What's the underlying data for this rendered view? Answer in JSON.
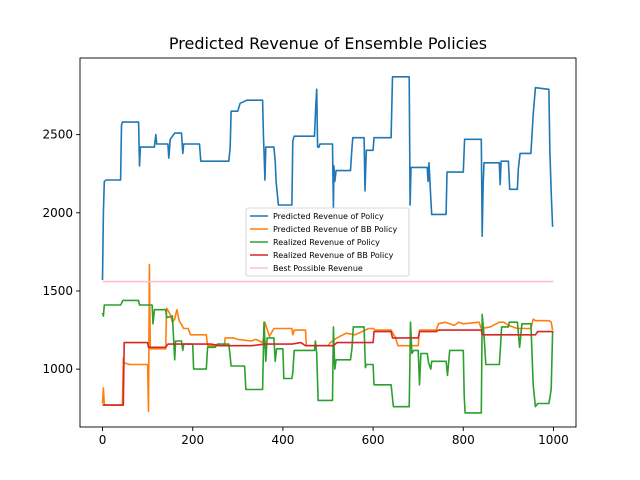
{
  "chart_data": {
    "type": "line",
    "title": "Predicted Revenue of Ensemble Policies",
    "xlabel": "",
    "ylabel": "",
    "xlim": [
      -50,
      1050
    ],
    "ylim": [
      630,
      2990
    ],
    "xticks": [
      0,
      200,
      400,
      600,
      800,
      1000
    ],
    "yticks": [
      1000,
      1500,
      2000,
      2500
    ],
    "grid": false,
    "legend_position": "center",
    "series": [
      {
        "name": "Predicted Revenue of Policy",
        "color": "#1f77b4",
        "points": [
          [
            0,
            1570
          ],
          [
            2,
            2000
          ],
          [
            4,
            2200
          ],
          [
            8,
            2210
          ],
          [
            40,
            2210
          ],
          [
            42,
            2560
          ],
          [
            44,
            2580
          ],
          [
            80,
            2580
          ],
          [
            82,
            2300
          ],
          [
            84,
            2420
          ],
          [
            115,
            2420
          ],
          [
            118,
            2500
          ],
          [
            120,
            2440
          ],
          [
            145,
            2440
          ],
          [
            147,
            2350
          ],
          [
            150,
            2470
          ],
          [
            160,
            2510
          ],
          [
            175,
            2510
          ],
          [
            178,
            2380
          ],
          [
            180,
            2440
          ],
          [
            200,
            2440
          ],
          [
            215,
            2440
          ],
          [
            218,
            2330
          ],
          [
            240,
            2330
          ],
          [
            280,
            2330
          ],
          [
            283,
            2420
          ],
          [
            285,
            2650
          ],
          [
            300,
            2650
          ],
          [
            305,
            2700
          ],
          [
            320,
            2720
          ],
          [
            355,
            2720
          ],
          [
            357,
            2480
          ],
          [
            358,
            2400
          ],
          [
            360,
            2210
          ],
          [
            362,
            2420
          ],
          [
            380,
            2420
          ],
          [
            383,
            2330
          ],
          [
            385,
            2200
          ],
          [
            390,
            2050
          ],
          [
            420,
            2050
          ],
          [
            422,
            2460
          ],
          [
            425,
            2490
          ],
          [
            470,
            2490
          ],
          [
            473,
            2690
          ],
          [
            475,
            2790
          ],
          [
            477,
            2420
          ],
          [
            480,
            2420
          ],
          [
            482,
            2440
          ],
          [
            510,
            2440
          ],
          [
            512,
            2030
          ],
          [
            513,
            2300
          ],
          [
            515,
            2200
          ],
          [
            518,
            2270
          ],
          [
            550,
            2270
          ],
          [
            553,
            2410
          ],
          [
            555,
            2480
          ],
          [
            580,
            2480
          ],
          [
            582,
            2140
          ],
          [
            585,
            2400
          ],
          [
            600,
            2400
          ],
          [
            602,
            2480
          ],
          [
            640,
            2480
          ],
          [
            643,
            2870
          ],
          [
            680,
            2870
          ],
          [
            682,
            2050
          ],
          [
            684,
            2290
          ],
          [
            720,
            2290
          ],
          [
            722,
            2200
          ],
          [
            724,
            2320
          ],
          [
            728,
            2090
          ],
          [
            730,
            1990
          ],
          [
            762,
            1990
          ],
          [
            764,
            2260
          ],
          [
            800,
            2260
          ],
          [
            803,
            2470
          ],
          [
            840,
            2470
          ],
          [
            842,
            1850
          ],
          [
            844,
            2170
          ],
          [
            846,
            2320
          ],
          [
            880,
            2320
          ],
          [
            882,
            2180
          ],
          [
            884,
            2330
          ],
          [
            900,
            2330
          ],
          [
            903,
            2150
          ],
          [
            920,
            2150
          ],
          [
            922,
            2280
          ],
          [
            926,
            2380
          ],
          [
            930,
            2380
          ],
          [
            950,
            2380
          ],
          [
            955,
            2630
          ],
          [
            960,
            2800
          ],
          [
            990,
            2790
          ],
          [
            992,
            2410
          ],
          [
            995,
            2130
          ],
          [
            998,
            1910
          ]
        ]
      },
      {
        "name": "Predicted Revenue of BB Policy",
        "color": "#ff7f0e",
        "points": [
          [
            0,
            780
          ],
          [
            2,
            880
          ],
          [
            4,
            770
          ],
          [
            44,
            770
          ],
          [
            46,
            1070
          ],
          [
            48,
            1040
          ],
          [
            60,
            1030
          ],
          [
            100,
            1030
          ],
          [
            102,
            730
          ],
          [
            104,
            1670
          ],
          [
            106,
            1130
          ],
          [
            140,
            1130
          ],
          [
            142,
            1390
          ],
          [
            150,
            1350
          ],
          [
            155,
            1300
          ],
          [
            160,
            1320
          ],
          [
            165,
            1380
          ],
          [
            170,
            1310
          ],
          [
            180,
            1260
          ],
          [
            190,
            1260
          ],
          [
            195,
            1220
          ],
          [
            230,
            1220
          ],
          [
            233,
            1150
          ],
          [
            250,
            1150
          ],
          [
            270,
            1150
          ],
          [
            272,
            1200
          ],
          [
            290,
            1200
          ],
          [
            300,
            1190
          ],
          [
            330,
            1180
          ],
          [
            340,
            1190
          ],
          [
            355,
            1170
          ],
          [
            358,
            1220
          ],
          [
            360,
            1300
          ],
          [
            370,
            1210
          ],
          [
            380,
            1260
          ],
          [
            420,
            1260
          ],
          [
            422,
            1220
          ],
          [
            425,
            1250
          ],
          [
            450,
            1250
          ],
          [
            452,
            1150
          ],
          [
            500,
            1150
          ],
          [
            505,
            1170
          ],
          [
            520,
            1200
          ],
          [
            540,
            1230
          ],
          [
            560,
            1220
          ],
          [
            590,
            1260
          ],
          [
            600,
            1260
          ],
          [
            605,
            1250
          ],
          [
            640,
            1250
          ],
          [
            650,
            1200
          ],
          [
            655,
            1150
          ],
          [
            700,
            1150
          ],
          [
            703,
            1250
          ],
          [
            740,
            1250
          ],
          [
            745,
            1290
          ],
          [
            760,
            1300
          ],
          [
            780,
            1280
          ],
          [
            790,
            1300
          ],
          [
            800,
            1290
          ],
          [
            835,
            1300
          ],
          [
            840,
            1260
          ],
          [
            860,
            1270
          ],
          [
            880,
            1300
          ],
          [
            890,
            1300
          ],
          [
            900,
            1280
          ],
          [
            920,
            1260
          ],
          [
            950,
            1260
          ],
          [
            955,
            1320
          ],
          [
            960,
            1310
          ],
          [
            990,
            1310
          ],
          [
            995,
            1300
          ],
          [
            998,
            1250
          ]
        ]
      },
      {
        "name": "Realized Revenue of Policy",
        "color": "#2ca02c",
        "points": [
          [
            0,
            1360
          ],
          [
            2,
            1340
          ],
          [
            4,
            1410
          ],
          [
            40,
            1410
          ],
          [
            42,
            1420
          ],
          [
            45,
            1440
          ],
          [
            80,
            1440
          ],
          [
            82,
            1410
          ],
          [
            110,
            1410
          ],
          [
            112,
            1290
          ],
          [
            115,
            1380
          ],
          [
            140,
            1380
          ],
          [
            142,
            1330
          ],
          [
            155,
            1340
          ],
          [
            160,
            1060
          ],
          [
            162,
            1180
          ],
          [
            175,
            1180
          ],
          [
            178,
            1120
          ],
          [
            180,
            1160
          ],
          [
            200,
            1160
          ],
          [
            202,
            1000
          ],
          [
            230,
            1000
          ],
          [
            233,
            1140
          ],
          [
            250,
            1140
          ],
          [
            255,
            1160
          ],
          [
            280,
            1160
          ],
          [
            282,
            1110
          ],
          [
            285,
            1020
          ],
          [
            315,
            1020
          ],
          [
            318,
            870
          ],
          [
            355,
            870
          ],
          [
            358,
            1300
          ],
          [
            362,
            1050
          ],
          [
            365,
            1200
          ],
          [
            380,
            1200
          ],
          [
            383,
            1050
          ],
          [
            386,
            1130
          ],
          [
            400,
            1130
          ],
          [
            402,
            940
          ],
          [
            420,
            940
          ],
          [
            422,
            980
          ],
          [
            425,
            1120
          ],
          [
            470,
            1120
          ],
          [
            472,
            1180
          ],
          [
            475,
            1100
          ],
          [
            478,
            800
          ],
          [
            480,
            800
          ],
          [
            510,
            800
          ],
          [
            512,
            1270
          ],
          [
            515,
            1000
          ],
          [
            518,
            1060
          ],
          [
            550,
            1060
          ],
          [
            553,
            1130
          ],
          [
            556,
            1270
          ],
          [
            580,
            1270
          ],
          [
            583,
            1010
          ],
          [
            585,
            1030
          ],
          [
            600,
            1030
          ],
          [
            602,
            900
          ],
          [
            640,
            900
          ],
          [
            645,
            760
          ],
          [
            680,
            760
          ],
          [
            683,
            1300
          ],
          [
            686,
            1100
          ],
          [
            690,
            1120
          ],
          [
            700,
            1120
          ],
          [
            703,
            900
          ],
          [
            706,
            1100
          ],
          [
            720,
            1100
          ],
          [
            723,
            1040
          ],
          [
            728,
            1000
          ],
          [
            730,
            1050
          ],
          [
            762,
            1050
          ],
          [
            765,
            960
          ],
          [
            770,
            1120
          ],
          [
            800,
            1120
          ],
          [
            802,
            830
          ],
          [
            804,
            720
          ],
          [
            840,
            720
          ],
          [
            842,
            1350
          ],
          [
            846,
            1220
          ],
          [
            850,
            1030
          ],
          [
            880,
            1030
          ],
          [
            882,
            1110
          ],
          [
            885,
            1270
          ],
          [
            900,
            1270
          ],
          [
            902,
            1300
          ],
          [
            920,
            1300
          ],
          [
            925,
            1140
          ],
          [
            930,
            1290
          ],
          [
            950,
            1290
          ],
          [
            955,
            900
          ],
          [
            960,
            760
          ],
          [
            965,
            780
          ],
          [
            990,
            780
          ],
          [
            995,
            870
          ],
          [
            998,
            1240
          ]
        ]
      },
      {
        "name": "Realized Revenue of BB Policy",
        "color": "#d62728",
        "points": [
          [
            0,
            770
          ],
          [
            46,
            770
          ],
          [
            48,
            1170
          ],
          [
            100,
            1170
          ],
          [
            102,
            1140
          ],
          [
            140,
            1140
          ],
          [
            145,
            1160
          ],
          [
            200,
            1160
          ],
          [
            240,
            1160
          ],
          [
            260,
            1150
          ],
          [
            330,
            1150
          ],
          [
            360,
            1160
          ],
          [
            400,
            1160
          ],
          [
            420,
            1160
          ],
          [
            440,
            1170
          ],
          [
            450,
            1150
          ],
          [
            510,
            1150
          ],
          [
            512,
            1150
          ],
          [
            520,
            1170
          ],
          [
            600,
            1170
          ],
          [
            602,
            1240
          ],
          [
            640,
            1240
          ],
          [
            643,
            1200
          ],
          [
            700,
            1200
          ],
          [
            703,
            1240
          ],
          [
            740,
            1240
          ],
          [
            745,
            1250
          ],
          [
            840,
            1250
          ],
          [
            842,
            1220
          ],
          [
            960,
            1220
          ],
          [
            965,
            1240
          ],
          [
            1000,
            1240
          ]
        ]
      },
      {
        "name": "Best Possible Revenue",
        "color": "#ffc0cb",
        "points": [
          [
            0,
            1560
          ],
          [
            1000,
            1560
          ]
        ]
      }
    ]
  }
}
